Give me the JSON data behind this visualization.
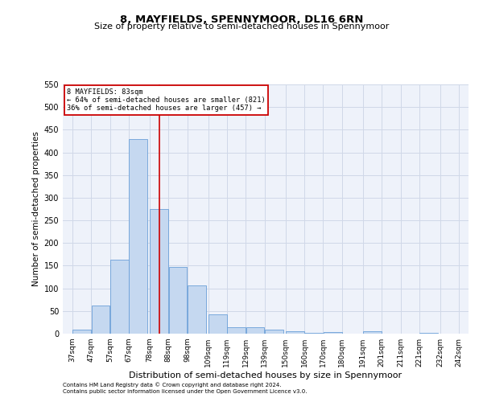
{
  "title": "8, MAYFIELDS, SPENNYMOOR, DL16 6RN",
  "subtitle": "Size of property relative to semi-detached houses in Spennymoor",
  "xlabel": "Distribution of semi-detached houses by size in Spennymoor",
  "ylabel": "Number of semi-detached properties",
  "footnote1": "Contains HM Land Registry data © Crown copyright and database right 2024.",
  "footnote2": "Contains public sector information licensed under the Open Government Licence v3.0.",
  "bar_left_edges": [
    37,
    47,
    57,
    67,
    78,
    88,
    98,
    109,
    119,
    129,
    139,
    150,
    160,
    170,
    180,
    191,
    201,
    211,
    221,
    232
  ],
  "bar_heights": [
    8,
    62,
    163,
    430,
    275,
    148,
    107,
    43,
    15,
    14,
    9,
    5,
    2,
    4,
    0,
    5,
    0,
    0,
    2,
    0
  ],
  "bar_color": "#c5d8f0",
  "bar_edgecolor": "#6a9fd8",
  "grid_color": "#d0d8e8",
  "vline_x": 83,
  "vline_color": "#cc0000",
  "annotation_line1": "8 MAYFIELDS: 83sqm",
  "annotation_line2": "← 64% of semi-detached houses are smaller (821)",
  "annotation_line3": "36% of semi-detached houses are larger (457) →",
  "annotation_box_color": "white",
  "annotation_box_edgecolor": "#cc0000",
  "ylim": [
    0,
    550
  ],
  "yticks": [
    0,
    50,
    100,
    150,
    200,
    250,
    300,
    350,
    400,
    450,
    500,
    550
  ],
  "tick_labels": [
    "37sqm",
    "47sqm",
    "57sqm",
    "67sqm",
    "78sqm",
    "88sqm",
    "98sqm",
    "109sqm",
    "119sqm",
    "129sqm",
    "139sqm",
    "150sqm",
    "160sqm",
    "170sqm",
    "180sqm",
    "191sqm",
    "201sqm",
    "211sqm",
    "221sqm",
    "232sqm",
    "242sqm"
  ],
  "tick_positions": [
    37,
    47,
    57,
    67,
    78,
    88,
    98,
    109,
    119,
    129,
    139,
    150,
    160,
    170,
    180,
    191,
    201,
    211,
    221,
    232,
    242
  ],
  "background_color": "#eef2fa",
  "title_fontsize": 9.5,
  "subtitle_fontsize": 8,
  "axis_label_fontsize": 7.5,
  "tick_fontsize": 6.5,
  "footnote_fontsize": 5
}
